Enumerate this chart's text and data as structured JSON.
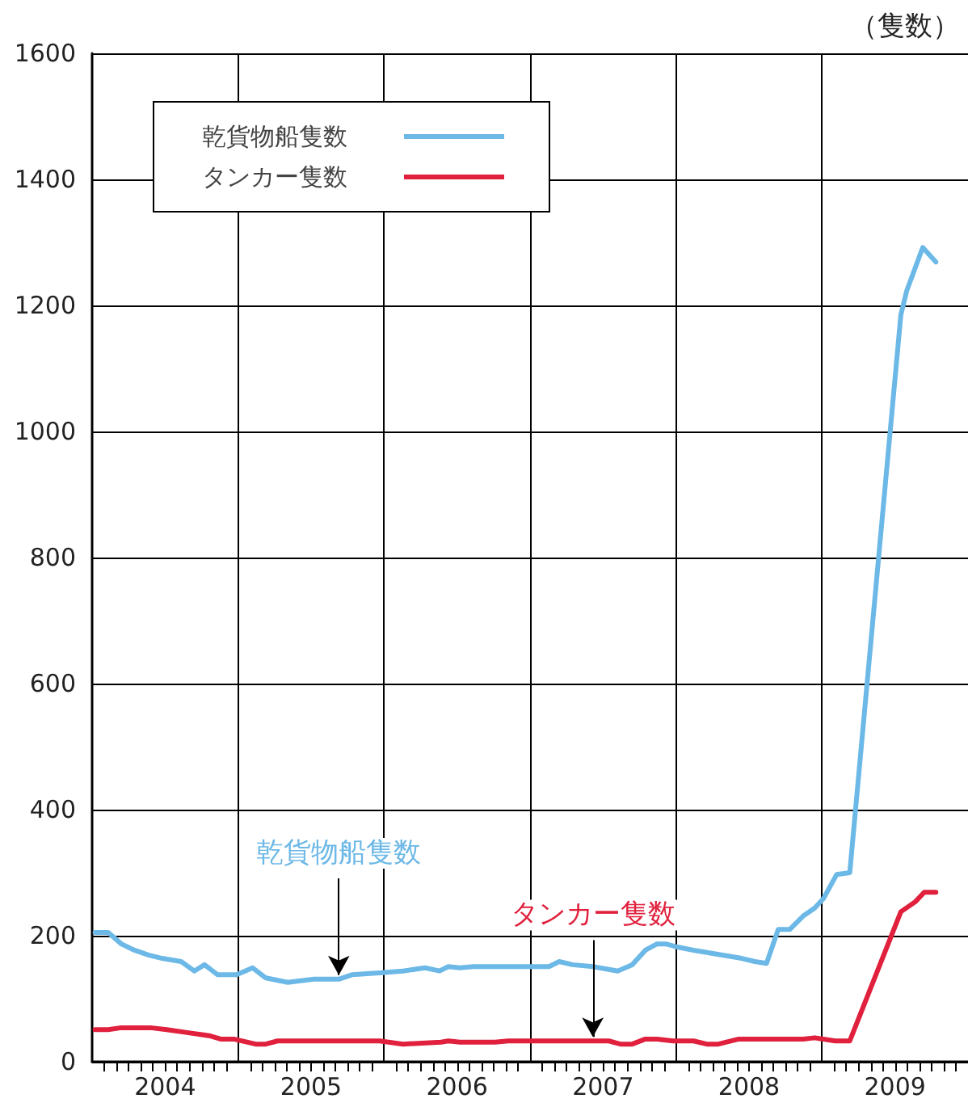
{
  "chart_data": {
    "type": "line",
    "ylabel": "（隻数）",
    "xlim": [
      2004,
      2010
    ],
    "ylim": [
      0,
      1600
    ],
    "xticks": [
      {
        "value": 2004.5,
        "label": "2004"
      },
      {
        "value": 2005.5,
        "label": "2005"
      },
      {
        "value": 2006.5,
        "label": "2006"
      },
      {
        "value": 2007.5,
        "label": "2007"
      },
      {
        "value": 2008.5,
        "label": "2008"
      },
      {
        "value": 2009.5,
        "label": "2009"
      },
      {
        "value": 2005,
        "label": null
      },
      {
        "value": 2006,
        "label": null
      },
      {
        "value": 2007,
        "label": null
      },
      {
        "value": 2008,
        "label": null
      },
      {
        "value": 2009,
        "label": null
      }
    ],
    "yticks": [
      0,
      200,
      400,
      600,
      800,
      1000,
      1200,
      1400,
      1600
    ],
    "grid": true,
    "legend": "top left",
    "marker": "none",
    "line_style": "solid",
    "series": [
      {
        "name": "乾貨物船隻数",
        "color": "#6cb8e6",
        "x": [
          2004.02,
          2004.11,
          2004.2,
          2004.29,
          2004.39,
          2004.48,
          2004.61,
          2004.7,
          2004.77,
          2004.86,
          2004.99,
          2005.1,
          2005.19,
          2005.34,
          2005.52,
          2005.69,
          2005.78,
          2005.97,
          2006.13,
          2006.28,
          2006.38,
          2006.44,
          2006.52,
          2006.61,
          2007.13,
          2007.2,
          2007.29,
          2007.43,
          2007.6,
          2007.7,
          2007.79,
          2007.87,
          2007.93,
          2008.01,
          2008.12,
          2008.45,
          2008.54,
          2008.62,
          2008.7,
          2008.78,
          2008.87,
          2008.95,
          2009.01,
          2009.1,
          2009.19,
          2009.54,
          2009.58,
          2009.69,
          2009.78
        ],
        "values": [
          205,
          205,
          187,
          177,
          169,
          164,
          159,
          144,
          154,
          138,
          138,
          149,
          133,
          126,
          131,
          131,
          138,
          141,
          144,
          149,
          144,
          151,
          149,
          151,
          151,
          159,
          154,
          151,
          144,
          154,
          177,
          187,
          187,
          182,
          177,
          164,
          159,
          156,
          210,
          210,
          231,
          244,
          259,
          297,
          300,
          1185,
          1223,
          1292,
          1269
        ]
      },
      {
        "name": "タンカー隻数",
        "color": "#e0203c",
        "x": [
          2004.02,
          2004.11,
          2004.2,
          2004.4,
          2004.51,
          2004.66,
          2004.81,
          2004.88,
          2004.97,
          2005.12,
          2005.19,
          2005.27,
          2005.97,
          2006.13,
          2006.39,
          2006.44,
          2006.52,
          2006.76,
          2006.85,
          2007.54,
          2007.62,
          2007.7,
          2007.79,
          2007.87,
          2007.98,
          2008.12,
          2008.21,
          2008.29,
          2008.43,
          2008.87,
          2008.95,
          2009.09,
          2009.19,
          2009.54,
          2009.64,
          2009.7,
          2009.78
        ],
        "values": [
          51,
          51,
          54,
          54,
          51,
          46,
          41,
          36,
          36,
          28,
          28,
          33,
          33,
          28,
          31,
          33,
          31,
          31,
          33,
          33,
          28,
          28,
          36,
          36,
          33,
          33,
          28,
          28,
          36,
          36,
          38,
          33,
          33,
          238,
          254,
          269,
          269
        ]
      }
    ],
    "annotations": [
      {
        "text": "乾貨物船隻数",
        "x": 2005.69,
        "y": 131
      },
      {
        "text": "タンカー隻数",
        "x": 2007.43,
        "y": 33
      }
    ]
  }
}
